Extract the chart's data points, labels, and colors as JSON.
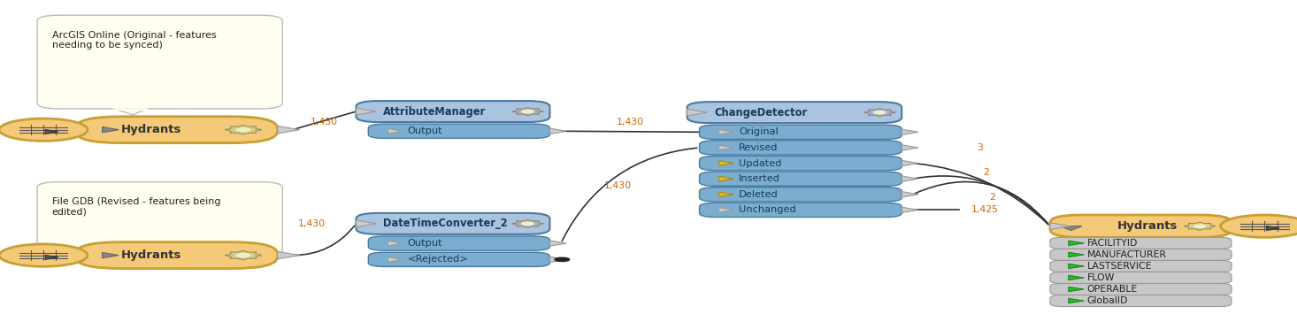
{
  "bg_color": "#ffffff",
  "node_orange_color": "#f5c97a",
  "node_orange_border": "#c8a030",
  "node_blue_color": "#aac4e0",
  "node_blue_dark": "#7aadd0",
  "node_blue_border": "#4a7aa0",
  "node_gray_color": "#c8c8c8",
  "node_gray_border": "#999999",
  "callout1_text": "ArcGIS Online (Original - features\nneeding to be synced)",
  "callout2_text": "File GDB (Revised - features being\nedited)",
  "hydrant_label": "Hydrants",
  "attr_manager_label": "AttributeManager",
  "attr_output_label": "Output",
  "dt_label": "DateTimeConverter_2",
  "dt_output_label": "Output",
  "dt_rejected_label": "<Rejected>",
  "cd_label": "ChangeDetector",
  "cd_ports": [
    "Original",
    "Revised",
    "Updated",
    "Inserted",
    "Deleted",
    "Unchanged"
  ],
  "cd_yellow_ports": [
    "Updated",
    "Inserted",
    "Deleted"
  ],
  "hydrant_out_label": "Hydrants",
  "hydrant_out_fields": [
    "FACILITYID",
    "MANUFACTURER",
    "LASTSERVICE",
    "FLOW",
    "OPERABLE",
    "GlobalID"
  ],
  "label_1430": "1,430",
  "label_1425": "1,425",
  "label_3": "3",
  "label_2a": "2",
  "label_2b": "2"
}
